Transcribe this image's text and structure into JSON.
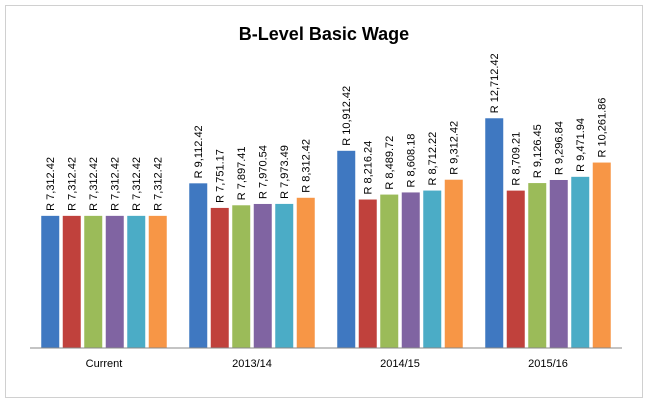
{
  "chart_data": {
    "type": "bar",
    "title": "B-Level Basic Wage",
    "categories": [
      "Current",
      "2013/14",
      "2014/15",
      "2015/16"
    ],
    "ylim": [
      0,
      14000
    ],
    "series": [
      {
        "color": "#3f78c1",
        "values": [
          7312.42,
          9112.42,
          10912.42,
          12712.42
        ],
        "value_labels": [
          "R 7,312.42",
          "R 9,112.42",
          "R 10,912.42",
          "R 12,712.42"
        ]
      },
      {
        "color": "#c0413c",
        "values": [
          7312.42,
          7751.17,
          8216.24,
          8709.21
        ],
        "value_labels": [
          "R 7,312.42",
          "R 7,751.17",
          "R 8,216.24",
          "R 8,709.21"
        ]
      },
      {
        "color": "#9bbb59",
        "values": [
          7312.42,
          7897.41,
          8489.72,
          9126.45
        ],
        "value_labels": [
          "R 7,312.42",
          "R 7,897.41",
          "R 8,489.72",
          "R 9,126.45"
        ]
      },
      {
        "color": "#8064a2",
        "values": [
          7312.42,
          7970.54,
          8608.18,
          9296.84
        ],
        "value_labels": [
          "R 7,312.42",
          "R 7,970.54",
          "R 8,608.18",
          "R 9,296.84"
        ]
      },
      {
        "color": "#4bacc6",
        "values": [
          7312.42,
          7973.49,
          8712.22,
          9471.94
        ],
        "value_labels": [
          "R 7,312.42",
          "R 7,973.49",
          "R 8,712.22",
          "R 9,471.94"
        ]
      },
      {
        "color": "#f79646",
        "values": [
          7312.42,
          8312.42,
          9312.42,
          10261.86
        ],
        "value_labels": [
          "R 7,312.42",
          "R 8,312.42",
          "R 9,312.42",
          "R 10,261.86"
        ]
      }
    ]
  }
}
